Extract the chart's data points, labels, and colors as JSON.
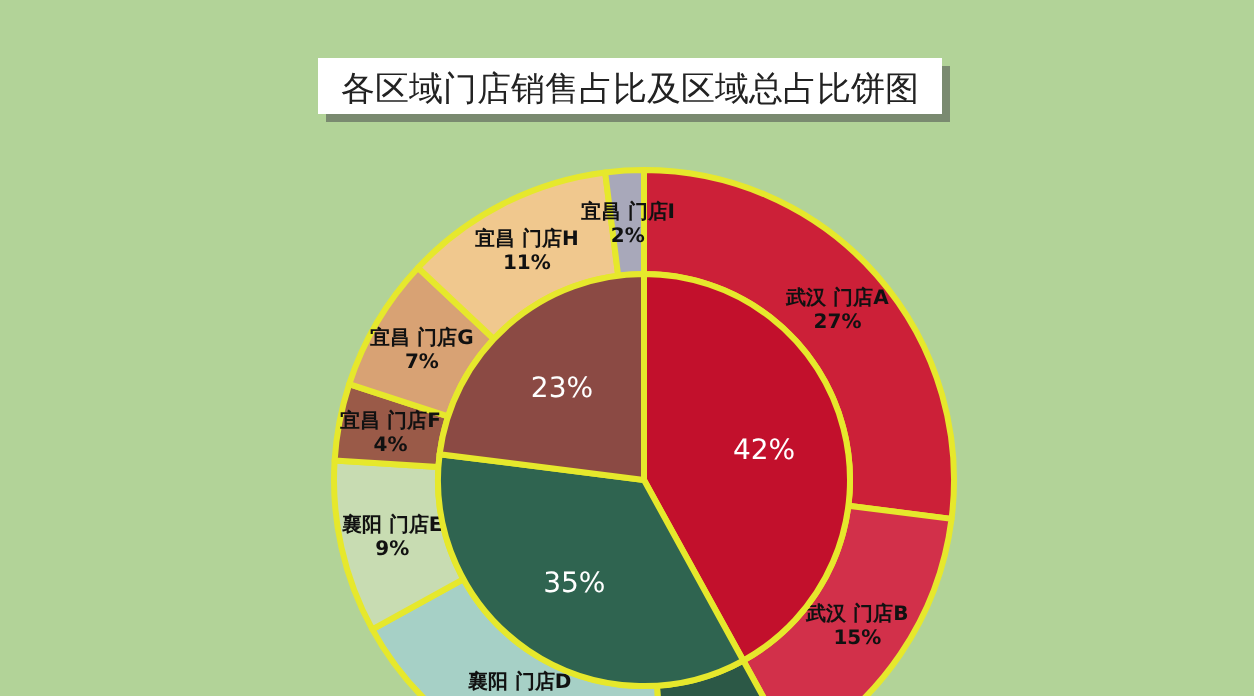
{
  "chart_data": [
    {
      "type": "pie",
      "title": "各区域门店销售占比及区域总占比饼图",
      "categories": [
        null,
        null,
        null
      ],
      "values": [
        42,
        35,
        23
      ],
      "value_labels": [
        "42%",
        "35%",
        "23%"
      ],
      "colors": [
        "#c2102c",
        "#2f6450",
        "#8b4a44"
      ]
    },
    {
      "type": "donut",
      "categories": [
        "武汉 门店A",
        "武汉 门店B",
        null,
        "襄阳 门店D",
        "襄阳 门店E",
        "宜昌 门店F",
        "宜昌 门店G",
        "宜昌 门店H",
        "宜昌 门店I"
      ],
      "values": [
        27,
        15,
        7,
        18,
        9,
        4,
        7,
        11,
        2
      ],
      "value_labels": [
        "27%",
        "15%",
        null,
        null,
        "9%",
        "4%",
        "7%",
        "11%",
        "2%"
      ],
      "colors": [
        "#cc2038",
        "#d2304a",
        "#2c5846",
        "#a6d0c6",
        "#c8dcb2",
        "#9a5a48",
        "#d8a274",
        "#f0c88e",
        "#a8a8ba"
      ]
    }
  ]
}
